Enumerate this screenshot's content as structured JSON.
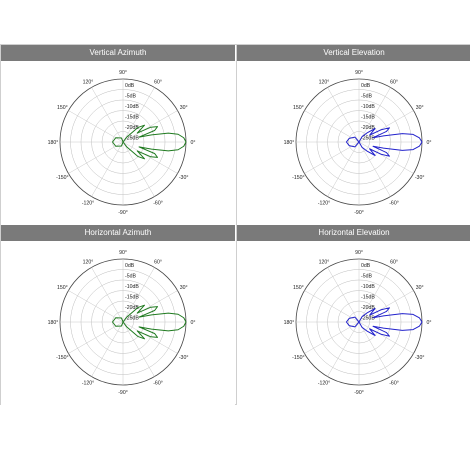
{
  "chart_data": [
    {
      "type": "polar",
      "title": "Vertical Azimuth",
      "angle_labels": [
        "90°",
        "60°",
        "30°",
        "0°",
        "-30°",
        "-60°",
        "-90°",
        "-120°",
        "-150°",
        "180°",
        "150°",
        "120°"
      ],
      "radial_labels": [
        "0dB",
        "-5dB",
        "-10dB",
        "-15dB",
        "-20dB",
        "-25dB"
      ],
      "radial_range_db": [
        -30,
        0
      ],
      "color": "#1f7a1f",
      "series": [
        {
          "points": [
            {
              "angle": 0,
              "db": 0
            },
            {
              "angle": 4,
              "db": -1
            },
            {
              "angle": 8,
              "db": -3.5
            },
            {
              "angle": 11,
              "db": -8
            },
            {
              "angle": 14,
              "db": -16
            },
            {
              "angle": 17,
              "db": -22
            },
            {
              "angle": 20,
              "db": -14
            },
            {
              "angle": 24,
              "db": -12
            },
            {
              "angle": 28,
              "db": -15
            },
            {
              "angle": 32,
              "db": -22
            },
            {
              "angle": 38,
              "db": -17
            },
            {
              "angle": 44,
              "db": -20
            },
            {
              "angle": 52,
              "db": -27
            },
            {
              "angle": 70,
              "db": -30
            },
            {
              "angle": 110,
              "db": -28
            },
            {
              "angle": 150,
              "db": -26
            },
            {
              "angle": 180,
              "db": -25
            },
            {
              "angle": 210,
              "db": -26
            },
            {
              "angle": 250,
              "db": -28
            },
            {
              "angle": 290,
              "db": -30
            },
            {
              "angle": 308,
              "db": -27
            },
            {
              "angle": 316,
              "db": -20
            },
            {
              "angle": 322,
              "db": -17
            },
            {
              "angle": 328,
              "db": -22
            },
            {
              "angle": 332,
              "db": -15
            },
            {
              "angle": 336,
              "db": -12
            },
            {
              "angle": 340,
              "db": -14
            },
            {
              "angle": 343,
              "db": -22
            },
            {
              "angle": 346,
              "db": -16
            },
            {
              "angle": 349,
              "db": -8
            },
            {
              "angle": 352,
              "db": -3.5
            },
            {
              "angle": 356,
              "db": -1
            },
            {
              "angle": 360,
              "db": 0
            }
          ]
        }
      ]
    },
    {
      "type": "polar",
      "title": "Vertical Elevation",
      "angle_labels": [
        "90°",
        "60°",
        "30°",
        "0°",
        "-30°",
        "-60°",
        "-90°",
        "-120°",
        "-150°",
        "180°",
        "150°",
        "120°"
      ],
      "radial_labels": [
        "0dB",
        "-5dB",
        "-10dB",
        "-15dB",
        "-20dB",
        "-25dB"
      ],
      "radial_range_db": [
        -30,
        0
      ],
      "color": "#2222cc",
      "series": [
        {
          "points": [
            {
              "angle": 0,
              "db": 0
            },
            {
              "angle": 4,
              "db": -1.2
            },
            {
              "angle": 8,
              "db": -4
            },
            {
              "angle": 11,
              "db": -9
            },
            {
              "angle": 14,
              "db": -18
            },
            {
              "angle": 17,
              "db": -23
            },
            {
              "angle": 21,
              "db": -16
            },
            {
              "angle": 25,
              "db": -14
            },
            {
              "angle": 29,
              "db": -18
            },
            {
              "angle": 33,
              "db": -24
            },
            {
              "angle": 40,
              "db": -20
            },
            {
              "angle": 48,
              "db": -24
            },
            {
              "angle": 60,
              "db": -27
            },
            {
              "angle": 90,
              "db": -30
            },
            {
              "angle": 130,
              "db": -27
            },
            {
              "angle": 160,
              "db": -25
            },
            {
              "angle": 180,
              "db": -24
            },
            {
              "angle": 200,
              "db": -25
            },
            {
              "angle": 230,
              "db": -27
            },
            {
              "angle": 270,
              "db": -30
            },
            {
              "angle": 300,
              "db": -27
            },
            {
              "angle": 312,
              "db": -24
            },
            {
              "angle": 320,
              "db": -20
            },
            {
              "angle": 327,
              "db": -24
            },
            {
              "angle": 331,
              "db": -18
            },
            {
              "angle": 335,
              "db": -14
            },
            {
              "angle": 339,
              "db": -16
            },
            {
              "angle": 343,
              "db": -23
            },
            {
              "angle": 346,
              "db": -18
            },
            {
              "angle": 349,
              "db": -9
            },
            {
              "angle": 352,
              "db": -4
            },
            {
              "angle": 356,
              "db": -1.2
            },
            {
              "angle": 360,
              "db": 0
            }
          ]
        }
      ]
    },
    {
      "type": "polar",
      "title": "Horizontal Azimuth",
      "angle_labels": [
        "90°",
        "60°",
        "30°",
        "0°",
        "-30°",
        "-60°",
        "-90°",
        "-120°",
        "-150°",
        "180°",
        "150°",
        "120°"
      ],
      "radial_labels": [
        "0dB",
        "-5dB",
        "-10dB",
        "-15dB",
        "-20dB",
        "-25dB"
      ],
      "radial_range_db": [
        -30,
        0
      ],
      "color": "#1f7a1f",
      "series": [
        {
          "points": [
            {
              "angle": 0,
              "db": 0
            },
            {
              "angle": 4,
              "db": -1
            },
            {
              "angle": 8,
              "db": -3.5
            },
            {
              "angle": 11,
              "db": -8
            },
            {
              "angle": 14,
              "db": -16
            },
            {
              "angle": 17,
              "db": -22
            },
            {
              "angle": 20,
              "db": -14
            },
            {
              "angle": 24,
              "db": -12
            },
            {
              "angle": 28,
              "db": -15
            },
            {
              "angle": 32,
              "db": -22
            },
            {
              "angle": 38,
              "db": -17
            },
            {
              "angle": 44,
              "db": -20
            },
            {
              "angle": 52,
              "db": -27
            },
            {
              "angle": 70,
              "db": -30
            },
            {
              "angle": 110,
              "db": -28
            },
            {
              "angle": 150,
              "db": -26
            },
            {
              "angle": 180,
              "db": -25
            },
            {
              "angle": 210,
              "db": -26
            },
            {
              "angle": 250,
              "db": -28
            },
            {
              "angle": 290,
              "db": -30
            },
            {
              "angle": 308,
              "db": -27
            },
            {
              "angle": 316,
              "db": -20
            },
            {
              "angle": 322,
              "db": -17
            },
            {
              "angle": 328,
              "db": -22
            },
            {
              "angle": 332,
              "db": -15
            },
            {
              "angle": 336,
              "db": -12
            },
            {
              "angle": 340,
              "db": -14
            },
            {
              "angle": 343,
              "db": -22
            },
            {
              "angle": 346,
              "db": -16
            },
            {
              "angle": 349,
              "db": -8
            },
            {
              "angle": 352,
              "db": -3.5
            },
            {
              "angle": 356,
              "db": -1
            },
            {
              "angle": 360,
              "db": 0
            }
          ]
        }
      ]
    },
    {
      "type": "polar",
      "title": "Horizontal Elevation",
      "angle_labels": [
        "90°",
        "60°",
        "30°",
        "0°",
        "-30°",
        "-60°",
        "-90°",
        "-120°",
        "-150°",
        "180°",
        "150°",
        "120°"
      ],
      "radial_labels": [
        "0dB",
        "-5dB",
        "-10dB",
        "-15dB",
        "-20dB",
        "-25dB"
      ],
      "radial_range_db": [
        -30,
        0
      ],
      "color": "#2222cc",
      "series": [
        {
          "points": [
            {
              "angle": 0,
              "db": 0
            },
            {
              "angle": 4,
              "db": -1.2
            },
            {
              "angle": 8,
              "db": -4
            },
            {
              "angle": 11,
              "db": -9
            },
            {
              "angle": 14,
              "db": -18
            },
            {
              "angle": 17,
              "db": -23
            },
            {
              "angle": 21,
              "db": -16
            },
            {
              "angle": 25,
              "db": -14
            },
            {
              "angle": 29,
              "db": -18
            },
            {
              "angle": 33,
              "db": -24
            },
            {
              "angle": 40,
              "db": -20
            },
            {
              "angle": 48,
              "db": -24
            },
            {
              "angle": 60,
              "db": -27
            },
            {
              "angle": 90,
              "db": -30
            },
            {
              "angle": 130,
              "db": -27
            },
            {
              "angle": 160,
              "db": -25
            },
            {
              "angle": 180,
              "db": -24
            },
            {
              "angle": 200,
              "db": -25
            },
            {
              "angle": 230,
              "db": -27
            },
            {
              "angle": 270,
              "db": -30
            },
            {
              "angle": 300,
              "db": -27
            },
            {
              "angle": 312,
              "db": -24
            },
            {
              "angle": 320,
              "db": -20
            },
            {
              "angle": 327,
              "db": -24
            },
            {
              "angle": 331,
              "db": -18
            },
            {
              "angle": 335,
              "db": -14
            },
            {
              "angle": 339,
              "db": -16
            },
            {
              "angle": 343,
              "db": -23
            },
            {
              "angle": 346,
              "db": -18
            },
            {
              "angle": 349,
              "db": -9
            },
            {
              "angle": 352,
              "db": -4
            },
            {
              "angle": 356,
              "db": -1.2
            },
            {
              "angle": 360,
              "db": 0
            }
          ]
        }
      ]
    }
  ]
}
